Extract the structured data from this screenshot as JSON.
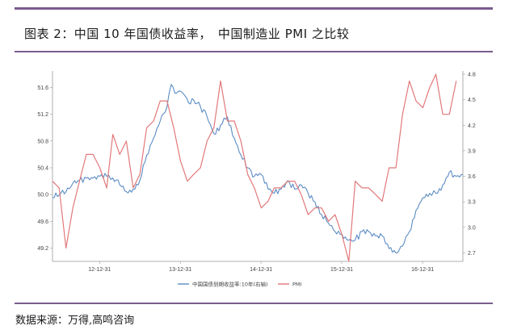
{
  "figure": {
    "title": "图表 2：中国 10 年国债收益率，　中国制造业 PMI 之比较",
    "source": "数据来源：万得,高鸣咨询"
  },
  "chart_data": {
    "type": "line",
    "x_ticks": [
      "12-12-31",
      "13-12-31",
      "14-12-31",
      "15-12-31",
      "16-12-31"
    ],
    "y_left": {
      "ticks": [
        "49.2",
        "49.6",
        "50.0",
        "50.4",
        "50.8",
        "51.2",
        "51.6"
      ],
      "ylim": [
        49.0,
        51.8
      ]
    },
    "y_right": {
      "ticks": [
        "2.7",
        "3.0",
        "3.3",
        "3.6",
        "3.9",
        "4.2",
        "4.5",
        "4.8"
      ],
      "ylim": [
        2.6,
        4.8
      ]
    },
    "legend_position": "bottom-center",
    "grid": false,
    "series": [
      {
        "name": "中国国债到期收益率:10年(右轴)",
        "axis": "right",
        "color": "#5b8cc4",
        "x": [
          "2012-06-01",
          "2012-07-01",
          "2012-08-01",
          "2012-09-01",
          "2012-10-01",
          "2012-11-01",
          "2012-12-01",
          "2013-01-01",
          "2013-02-01",
          "2013-03-01",
          "2013-04-01",
          "2013-05-01",
          "2013-06-01",
          "2013-07-01",
          "2013-08-01",
          "2013-09-01",
          "2013-10-01",
          "2013-11-01",
          "2013-11-20",
          "2013-12-15",
          "2014-01-01",
          "2014-01-20",
          "2014-02-15",
          "2014-03-01",
          "2014-04-01",
          "2014-05-01",
          "2014-06-01",
          "2014-07-01",
          "2014-08-01",
          "2014-09-01",
          "2014-10-01",
          "2014-11-01",
          "2014-12-01",
          "2015-01-01",
          "2015-02-01",
          "2015-03-01",
          "2015-04-01",
          "2015-05-01",
          "2015-06-01",
          "2015-07-01",
          "2015-08-01",
          "2015-09-01",
          "2015-10-01",
          "2015-11-01",
          "2015-12-01",
          "2016-01-01",
          "2016-02-01",
          "2016-03-01",
          "2016-04-01",
          "2016-05-01",
          "2016-06-01",
          "2016-07-01",
          "2016-08-01",
          "2016-09-01",
          "2016-10-01",
          "2016-11-01",
          "2016-12-01",
          "2017-01-01",
          "2017-02-01",
          "2017-03-01",
          "2017-04-01",
          "2017-05-01",
          "2017-06-01",
          "2017-07-01"
        ],
        "values": [
          3.35,
          3.38,
          3.42,
          3.52,
          3.55,
          3.58,
          3.58,
          3.6,
          3.6,
          3.58,
          3.5,
          3.42,
          3.45,
          3.55,
          3.85,
          4.05,
          4.25,
          4.42,
          4.68,
          4.58,
          4.6,
          4.55,
          4.45,
          4.5,
          4.42,
          4.3,
          4.1,
          4.2,
          4.3,
          4.05,
          3.85,
          3.7,
          3.6,
          3.62,
          3.45,
          3.4,
          3.45,
          3.55,
          3.45,
          3.5,
          3.4,
          3.3,
          3.15,
          3.05,
          2.95,
          2.92,
          2.85,
          2.85,
          2.95,
          2.95,
          2.9,
          2.9,
          2.75,
          2.7,
          2.78,
          2.95,
          3.2,
          3.35,
          3.4,
          3.4,
          3.5,
          3.65,
          3.6,
          3.62
        ]
      },
      {
        "name": "PMI",
        "axis": "left",
        "color": "#e2787a",
        "x": [
          "2012-06-01",
          "2012-07-01",
          "2012-08-01",
          "2012-09-01",
          "2012-10-01",
          "2012-11-01",
          "2012-12-01",
          "2013-01-01",
          "2013-02-01",
          "2013-03-01",
          "2013-04-01",
          "2013-05-01",
          "2013-06-01",
          "2013-07-01",
          "2013-08-01",
          "2013-09-01",
          "2013-10-01",
          "2013-11-01",
          "2013-12-01",
          "2014-01-01",
          "2014-02-01",
          "2014-03-01",
          "2014-04-01",
          "2014-05-01",
          "2014-06-01",
          "2014-07-01",
          "2014-08-01",
          "2014-09-01",
          "2014-10-01",
          "2014-11-01",
          "2014-12-01",
          "2015-01-01",
          "2015-02-01",
          "2015-03-01",
          "2015-04-01",
          "2015-05-01",
          "2015-06-01",
          "2015-07-01",
          "2015-08-01",
          "2015-09-01",
          "2015-10-01",
          "2015-11-01",
          "2015-12-01",
          "2016-01-01",
          "2016-02-01",
          "2016-03-01",
          "2016-04-01",
          "2016-05-01",
          "2016-06-01",
          "2016-07-01",
          "2016-08-01",
          "2016-09-01",
          "2016-10-01",
          "2016-11-01",
          "2016-12-01",
          "2017-01-01",
          "2017-02-01",
          "2017-03-01",
          "2017-04-01",
          "2017-05-01",
          "2017-06-01"
        ],
        "values": [
          50.2,
          50.1,
          49.2,
          49.8,
          50.2,
          50.6,
          50.6,
          50.4,
          50.1,
          50.9,
          50.6,
          50.8,
          50.1,
          50.3,
          51.0,
          51.1,
          51.4,
          51.4,
          51.0,
          50.5,
          50.2,
          50.3,
          50.4,
          50.8,
          51.0,
          51.7,
          51.1,
          51.1,
          50.8,
          50.3,
          50.1,
          49.8,
          49.9,
          50.1,
          50.1,
          50.2,
          50.2,
          50.0,
          49.7,
          49.8,
          49.8,
          49.6,
          49.7,
          49.4,
          49.0,
          50.2,
          50.1,
          50.1,
          50.0,
          49.9,
          50.4,
          50.4,
          51.2,
          51.7,
          51.4,
          51.3,
          51.6,
          51.8,
          51.2,
          51.2,
          51.7
        ]
      }
    ]
  }
}
